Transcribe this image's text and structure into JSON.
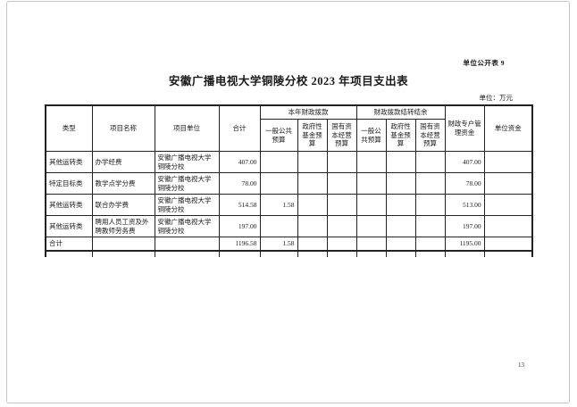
{
  "page": {
    "form_label": "单位公开表 9",
    "title": "安徽广播电视大学铜陵分校 2023 年项目支出表",
    "unit_note": "单位：万元",
    "page_number": "13"
  },
  "table": {
    "headers": {
      "type": "类型",
      "project_name": "项目名称",
      "project_unit": "项目单位",
      "total": "合计",
      "current_year_group": "本年财政拨款",
      "current_year_sub": [
        "一般公共预算",
        "政府性基金预算",
        "国有资本经营预算"
      ],
      "carryover_group": "财政拨款结转结余",
      "carryover_sub": [
        "一般公共预算",
        "政府性基金预算",
        "国有资本经营预算"
      ],
      "special_account": "财政专户管理资金",
      "unit_funds": "单位资金"
    },
    "col_keys": [
      "type",
      "project-name",
      "project-unit",
      "total",
      "cy-general-public-budget",
      "cy-govt-fund-budget",
      "cy-state-capital-budget",
      "co-general-public-budget",
      "co-govt-fund-budget",
      "co-state-capital-budget",
      "special-account-funds",
      "unit-funds"
    ],
    "rows": [
      {
        "is_total": false,
        "cells": [
          "其他运转类",
          "办学经费",
          "安徽广播电视大学铜陵分校",
          "407.00",
          "",
          "",
          "",
          "",
          "",
          "",
          "407.00",
          ""
        ]
      },
      {
        "is_total": false,
        "cells": [
          "特定目标类",
          "教学点学分费",
          "安徽广播电视大学铜陵分校",
          "78.00",
          "",
          "",
          "",
          "",
          "",
          "",
          "78.00",
          ""
        ]
      },
      {
        "is_total": false,
        "cells": [
          "其他运转类",
          "联合办学费",
          "安徽广播电视大学铜陵分校",
          "514.58",
          "1.58",
          "",
          "",
          "",
          "",
          "",
          "513.00",
          ""
        ]
      },
      {
        "is_total": false,
        "cells": [
          "其他运转类",
          "聘用人员工资及外聘教师劳务费",
          "安徽广播电视大学铜陵分校",
          "197.00",
          "",
          "",
          "",
          "",
          "",
          "",
          "197.00",
          ""
        ]
      },
      {
        "is_total": true,
        "cells": [
          "合计",
          "",
          "",
          "1196.58",
          "1.58",
          "",
          "",
          "",
          "",
          "",
          "1195.00",
          ""
        ]
      }
    ]
  }
}
